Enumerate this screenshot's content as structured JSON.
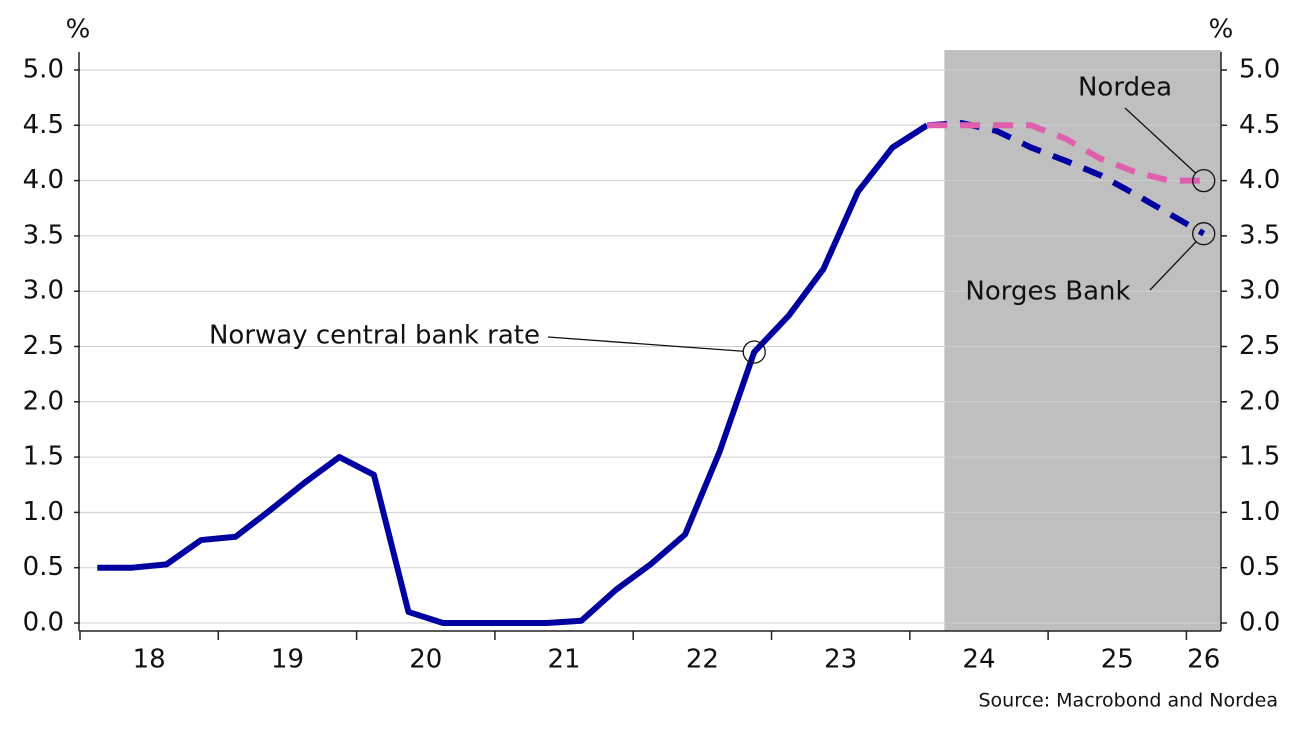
{
  "chart_data": {
    "type": "line",
    "y_unit": "%",
    "y2_unit": "%",
    "source": "Source: Macrobond and Nordea",
    "xlim": [
      2018,
      2026.25
    ],
    "xticks": [
      2018,
      2019,
      2020,
      2021,
      2022,
      2023,
      2024,
      2025,
      2026
    ],
    "xtick_labels": [
      {
        "value": 2018.5,
        "label": "18"
      },
      {
        "value": 2019.5,
        "label": "19"
      },
      {
        "value": 2020.5,
        "label": "20"
      },
      {
        "value": 2021.5,
        "label": "21"
      },
      {
        "value": 2022.5,
        "label": "22"
      },
      {
        "value": 2023.5,
        "label": "23"
      },
      {
        "value": 2024.5,
        "label": "24"
      },
      {
        "value": 2025.5,
        "label": "25"
      },
      {
        "value": 2026.125,
        "label": "26"
      }
    ],
    "ylim": [
      0,
      5
    ],
    "yticks": [
      {
        "value": 0,
        "label": "0.0"
      },
      {
        "value": 0.5,
        "label": "0.5"
      },
      {
        "value": 1,
        "label": "1.0"
      },
      {
        "value": 1.5,
        "label": "1.5"
      },
      {
        "value": 2,
        "label": "2.0"
      },
      {
        "value": 2.5,
        "label": "2.5"
      },
      {
        "value": 3,
        "label": "3.0"
      },
      {
        "value": 3.5,
        "label": "3.5"
      },
      {
        "value": 4,
        "label": "4.0"
      },
      {
        "value": 4.5,
        "label": "4.5"
      },
      {
        "value": 5,
        "label": "5.0"
      }
    ],
    "y2lim": [
      0,
      5
    ],
    "y2ticks": [
      {
        "value": 0,
        "label": "0.0"
      },
      {
        "value": 0.5,
        "label": "0.5"
      },
      {
        "value": 1,
        "label": "1.0"
      },
      {
        "value": 1.5,
        "label": "1.5"
      },
      {
        "value": 2,
        "label": "2.0"
      },
      {
        "value": 2.5,
        "label": "2.5"
      },
      {
        "value": 3,
        "label": "3.0"
      },
      {
        "value": 3.5,
        "label": "3.5"
      },
      {
        "value": 4,
        "label": "4.0"
      },
      {
        "value": 4.5,
        "label": "4.5"
      },
      {
        "value": 5,
        "label": "5.0"
      }
    ],
    "grid": true,
    "shaded_region": [
      2024.25,
      2026.25
    ],
    "shade_color": "#bfbfbf",
    "series": [
      {
        "name": "Norway central bank rate",
        "color": "#0000a0",
        "dashed": false,
        "x": [
          2018.125,
          2018.375,
          2018.625,
          2018.875,
          2019.125,
          2019.375,
          2019.625,
          2019.875,
          2020.125,
          2020.375,
          2020.625,
          2020.875,
          2021.125,
          2021.375,
          2021.625,
          2021.875,
          2022.125,
          2022.375,
          2022.625,
          2022.875,
          2023.125,
          2023.375,
          2023.625,
          2023.875,
          2024.125
        ],
        "values": [
          0.5,
          0.5,
          0.53,
          0.75,
          0.78,
          1.02,
          1.27,
          1.5,
          1.34,
          0.1,
          0,
          0,
          0,
          0,
          0.02,
          0.3,
          0.53,
          0.8,
          1.55,
          2.45,
          2.78,
          3.2,
          3.9,
          4.3,
          4.5
        ]
      },
      {
        "name": "Norges Bank",
        "color": "#0000a0",
        "dashed": true,
        "x": [
          2024.125,
          2024.375,
          2024.625,
          2024.875,
          2025.125,
          2025.375,
          2025.625,
          2025.875,
          2026.125
        ],
        "values": [
          4.5,
          4.52,
          4.45,
          4.3,
          4.18,
          4.05,
          3.88,
          3.7,
          3.52
        ]
      },
      {
        "name": "Nordea",
        "color": "#df5fae",
        "dashed": true,
        "x": [
          2024.125,
          2024.375,
          2024.625,
          2024.875,
          2025.125,
          2025.375,
          2025.625,
          2025.875,
          2026.125
        ],
        "values": [
          4.5,
          4.5,
          4.5,
          4.5,
          4.38,
          4.2,
          4.08,
          4.0,
          4.0
        ]
      }
    ]
  }
}
